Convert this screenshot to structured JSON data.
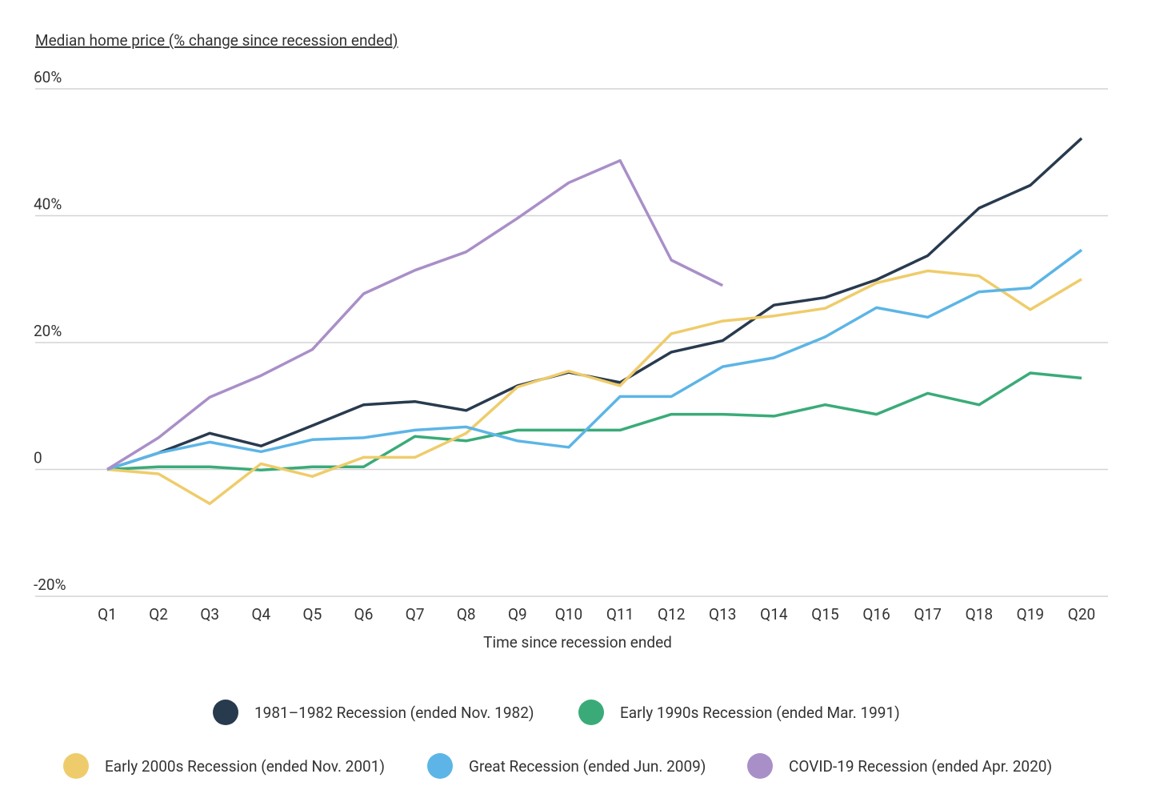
{
  "chart_data": {
    "type": "line",
    "title": "Median home price (% change since recession ended)",
    "x_label": "Time since recession ended",
    "categories": [
      "Q1",
      "Q2",
      "Q3",
      "Q4",
      "Q5",
      "Q6",
      "Q7",
      "Q8",
      "Q9",
      "Q10",
      "Q11",
      "Q12",
      "Q13",
      "Q14",
      "Q15",
      "Q16",
      "Q17",
      "Q18",
      "Q19",
      "Q20"
    ],
    "ylim": [
      -20,
      60
    ],
    "yticks": [
      {
        "value": -20,
        "label": "-20%"
      },
      0,
      {
        "value": 20,
        "label": "20%"
      },
      {
        "value": 40,
        "label": "40%"
      },
      {
        "value": 60,
        "label": "60%"
      }
    ],
    "grid": true,
    "legend": "bottom",
    "series": [
      {
        "name": "1981–1982 Recession (ended Nov. 1982)",
        "color": "#283a4e",
        "values": [
          0,
          2.6,
          5.7,
          3.7,
          6.9,
          10.2,
          10.7,
          9.3,
          13.2,
          15.3,
          13.7,
          18.5,
          20.3,
          25.9,
          27.1,
          29.9,
          33.7,
          41.2,
          44.8,
          52.2
        ]
      },
      {
        "name": "Early 1990s Recession (ended Mar. 1991)",
        "color": "#3aab78",
        "values": [
          0,
          0.4,
          0.4,
          -0.1,
          0.4,
          0.4,
          5.2,
          4.5,
          6.2,
          6.2,
          6.2,
          8.7,
          8.7,
          8.4,
          10.2,
          8.7,
          12.0,
          10.2,
          15.2,
          14.4
        ]
      },
      {
        "name": "Early 2000s Recession (ended Nov. 2001)",
        "color": "#efcc6b",
        "values": [
          0,
          -0.7,
          -5.4,
          0.9,
          -1.1,
          1.9,
          1.9,
          5.7,
          13.0,
          15.5,
          13.2,
          21.4,
          23.4,
          24.2,
          25.4,
          29.4,
          31.3,
          30.5,
          25.2,
          30.0
        ]
      },
      {
        "name": "Great Recession (ended Jun. 2009)",
        "color": "#5cb5e6",
        "values": [
          0,
          2.6,
          4.3,
          2.8,
          4.7,
          5.0,
          6.2,
          6.7,
          4.5,
          3.5,
          11.5,
          11.5,
          16.2,
          17.6,
          20.9,
          25.5,
          24.0,
          28.0,
          28.6,
          34.6
        ]
      },
      {
        "name": "COVID-19 Recession (ended Apr. 2020)",
        "color": "#a98fc8",
        "values": [
          0,
          5.0,
          11.4,
          14.8,
          18.9,
          27.7,
          31.4,
          34.3,
          39.6,
          45.2,
          48.7,
          33.0,
          29.0,
          null,
          null,
          null,
          null,
          null,
          null,
          null
        ]
      }
    ]
  }
}
